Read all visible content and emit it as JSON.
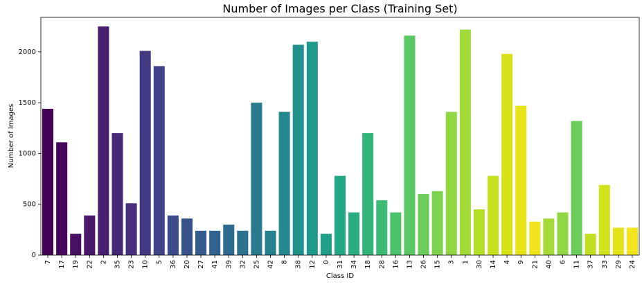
{
  "chart_data": {
    "type": "bar",
    "title": "Number of Images per Class (Training Set)",
    "xlabel": "Class ID",
    "ylabel": "Number of Images",
    "ylim": [
      0,
      2340
    ],
    "yticks": [
      0,
      500,
      1000,
      1500,
      2000
    ],
    "grid": false,
    "palette": "viridis",
    "categories": [
      "7",
      "17",
      "19",
      "22",
      "2",
      "35",
      "23",
      "10",
      "5",
      "36",
      "20",
      "27",
      "41",
      "39",
      "32",
      "25",
      "42",
      "8",
      "38",
      "12",
      "0",
      "31",
      "34",
      "18",
      "28",
      "16",
      "13",
      "26",
      "15",
      "3",
      "1",
      "30",
      "14",
      "4",
      "9",
      "21",
      "40",
      "6",
      "11",
      "37",
      "33",
      "29",
      "24"
    ],
    "values": [
      1440,
      1110,
      210,
      390,
      2250,
      1200,
      510,
      2010,
      1860,
      390,
      360,
      240,
      240,
      300,
      240,
      1500,
      240,
      1410,
      2070,
      2100,
      210,
      780,
      420,
      1200,
      540,
      420,
      2160,
      600,
      630,
      1410,
      2220,
      450,
      780,
      1980,
      1470,
      330,
      360,
      420,
      1320,
      210,
      690,
      270,
      270
    ],
    "colors": [
      "#440154",
      "#46085c",
      "#471063",
      "#48176a",
      "#482071",
      "#472877",
      "#46307e",
      "#433882",
      "#404387",
      "#3c4b8a",
      "#38538c",
      "#355c8d",
      "#32638e",
      "#2f6b8e",
      "#2c728e",
      "#297a8e",
      "#26828e",
      "#24898e",
      "#21918c",
      "#1f998a",
      "#1fa088",
      "#22a884",
      "#28ae80",
      "#31b57b",
      "#3dbb74",
      "#4cc26c",
      "#5ac864",
      "#6ccd5a",
      "#7ed34f",
      "#90d743",
      "#a2da37",
      "#b5de2b",
      "#c7e020",
      "#d8e219",
      "#e7e419",
      "#f0e51c",
      "#a5db36",
      "#90d743",
      "#6ccd5a",
      "#c2df23",
      "#d2e21b",
      "#e2e418",
      "#f2e51d"
    ]
  }
}
